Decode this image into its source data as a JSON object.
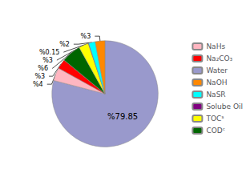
{
  "chart_data": {
    "type": "pie",
    "categories": [
      "Water",
      "NaHs",
      "Na₂CO₃",
      "CODᶜ",
      "TOCˢ",
      "Solube Oil",
      "NaSR",
      "NaOH"
    ],
    "values": [
      79.85,
      4,
      3,
      6,
      3,
      0.15,
      2,
      3
    ],
    "value_labels": [
      "%79.85",
      "%4",
      "%3",
      "%6",
      "%3",
      "%0.15",
      "%2",
      "%3"
    ],
    "colors": [
      "#9999cc",
      "#ffb6c1",
      "#ff0000",
      "#006600",
      "#ffff00",
      "#800080",
      "#00ffff",
      "#ff8800"
    ],
    "data_labels": true,
    "legend": "right",
    "legend_labels": [
      "NaHs",
      "Na₂CO₃",
      "Water",
      "NaOH",
      "NaSR",
      "Solube Oil",
      "TOCˢ",
      "CODᶜ"
    ]
  }
}
